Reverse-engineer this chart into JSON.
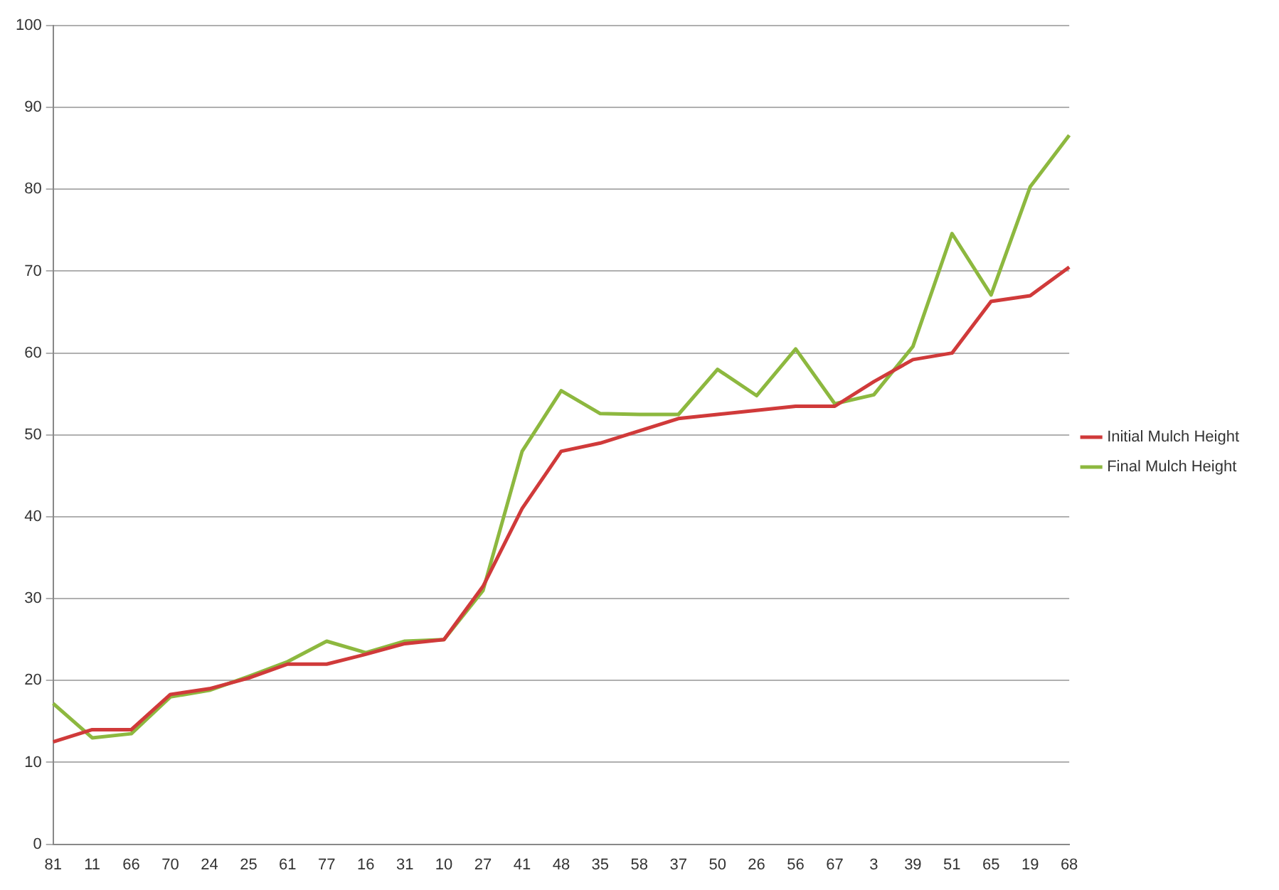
{
  "chart_data": {
    "type": "line",
    "categories": [
      "81",
      "11",
      "66",
      "70",
      "24",
      "25",
      "61",
      "77",
      "16",
      "31",
      "10",
      "27",
      "41",
      "48",
      "35",
      "58",
      "37",
      "50",
      "26",
      "56",
      "67",
      "3",
      "39",
      "51",
      "65",
      "19",
      "68"
    ],
    "series": [
      {
        "name": "Initial Mulch Height",
        "color": "#d03a3a",
        "values": [
          12.5,
          14,
          14,
          18.3,
          19,
          20.3,
          22,
          22,
          23.2,
          24.5,
          25,
          31.5,
          41,
          48,
          49,
          50.5,
          52,
          52.5,
          53,
          53.5,
          53.5,
          56.5,
          59.2,
          60,
          66.3,
          67,
          70.5
        ]
      },
      {
        "name": "Final Mulch Height",
        "color": "#8db83f",
        "values": [
          17.2,
          13,
          13.5,
          18,
          18.8,
          20.5,
          22.3,
          24.8,
          23.4,
          24.8,
          25,
          31,
          48,
          55.4,
          52.6,
          52.5,
          52.5,
          58,
          54.8,
          60.5,
          53.8,
          54.9,
          60.8,
          74.6,
          67.1,
          80.3,
          86.6
        ]
      }
    ],
    "ylim": [
      0,
      100
    ],
    "yticks": [
      0,
      10,
      20,
      30,
      40,
      50,
      60,
      70,
      80,
      90,
      100
    ],
    "grid": "y",
    "legend": "right",
    "marker": "none",
    "line_style": "solid"
  }
}
